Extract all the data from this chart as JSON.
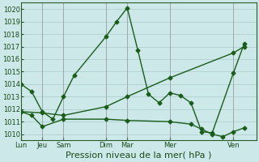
{
  "xlabel": "Pression niveau de la mer( hPa )",
  "xlabel_fontsize": 8,
  "bg_color": "#cce8e8",
  "grid_color": "#aacccc",
  "line_color": "#1a5c1a",
  "ylim": [
    1009.5,
    1020.5
  ],
  "yticks": [
    1010,
    1011,
    1012,
    1013,
    1014,
    1015,
    1016,
    1017,
    1018,
    1019,
    1020
  ],
  "xtick_labels": [
    "Lun",
    "Jeu",
    "Sam",
    "Dim",
    "Mar",
    "Mer",
    "Ven"
  ],
  "xtick_positions": [
    0,
    14,
    28,
    56,
    70,
    98,
    140
  ],
  "xlim": [
    0,
    155
  ],
  "line1_x": [
    0,
    7,
    14,
    21,
    28,
    35,
    56,
    63,
    70,
    77,
    84,
    91,
    98,
    105,
    112,
    119,
    126,
    140,
    147
  ],
  "line1_y": [
    1014.0,
    1013.4,
    1011.8,
    1011.2,
    1013.0,
    1014.7,
    1017.8,
    1019.0,
    1020.1,
    1016.7,
    1013.2,
    1012.5,
    1013.3,
    1013.1,
    1012.5,
    1010.2,
    1010.1,
    1014.9,
    1017.2
  ],
  "line2_x": [
    0,
    14,
    28,
    56,
    70,
    98,
    140,
    147
  ],
  "line2_y": [
    1011.8,
    1011.7,
    1011.5,
    1012.2,
    1013.0,
    1014.5,
    1016.5,
    1017.0
  ],
  "line3_x": [
    0,
    7,
    14,
    28,
    56,
    70,
    98,
    112,
    119,
    126,
    133,
    140,
    147
  ],
  "line3_y": [
    1011.8,
    1011.5,
    1010.6,
    1011.2,
    1011.2,
    1011.1,
    1011.0,
    1010.8,
    1010.4,
    1010.0,
    1009.8,
    1010.2,
    1010.5
  ],
  "marker": "D",
  "markersize": 2.5
}
